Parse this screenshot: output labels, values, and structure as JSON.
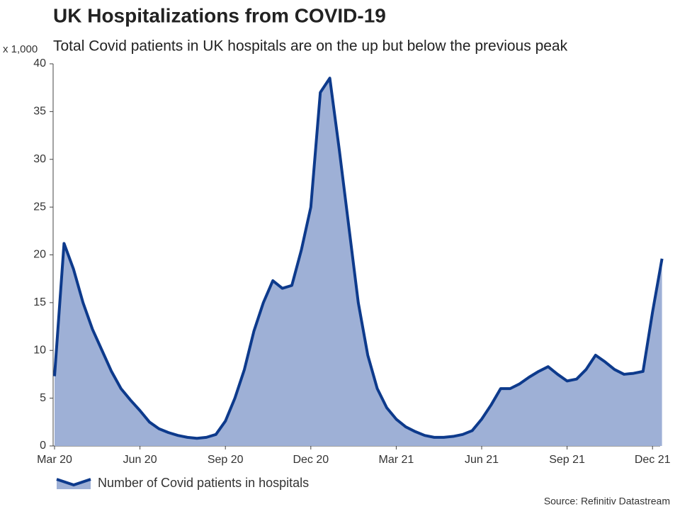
{
  "chart_data": {
    "type": "area",
    "title": "UK Hospitalizations from COVID-19",
    "subtitle": "Total Covid patients in UK hospitals are on the up but below the previous peak",
    "y_unit_label": "x 1,000",
    "source": "Source: Refinitiv Datastream",
    "categories": [
      "Mar 20",
      null,
      null,
      null,
      null,
      null,
      null,
      null,
      null,
      "Jun 20",
      null,
      null,
      null,
      null,
      null,
      null,
      null,
      null,
      "Sep 20",
      null,
      null,
      null,
      null,
      null,
      null,
      null,
      null,
      "Dec 20",
      null,
      null,
      null,
      null,
      null,
      null,
      null,
      null,
      "Mar 21",
      null,
      null,
      null,
      null,
      null,
      null,
      null,
      null,
      "Jun 21",
      null,
      null,
      null,
      null,
      null,
      null,
      null,
      null,
      "Sep 21",
      null,
      null,
      null,
      null,
      null,
      null,
      null,
      null,
      "Dec 21",
      null
    ],
    "series": [
      {
        "name": "Number of Covid patients in hospitals",
        "color": "#0d3a8c",
        "fill": "#9eb0d6",
        "values": [
          7.3,
          21.2,
          18.5,
          15,
          12.2,
          10,
          7.8,
          6,
          4.8,
          3.7,
          2.5,
          1.8,
          1.4,
          1.1,
          0.9,
          0.8,
          0.9,
          1.2,
          2.6,
          5,
          8,
          12,
          15,
          17.3,
          16.5,
          16.8,
          20.5,
          25,
          37,
          38.5,
          31,
          23,
          15,
          9.5,
          6,
          4,
          2.8,
          2,
          1.5,
          1.1,
          0.9,
          0.9,
          1,
          1.2,
          1.6,
          2.8,
          4.3,
          6,
          6,
          6.5,
          7.2,
          7.8,
          8.3,
          7.5,
          6.8,
          7,
          8,
          9.5,
          8.8,
          8,
          7.5,
          7.6,
          7.8,
          14,
          19.6
        ]
      }
    ],
    "ylim": [
      0,
      40
    ],
    "yticks": [
      0,
      5,
      10,
      15,
      20,
      25,
      30,
      35,
      40
    ],
    "grid": false
  }
}
